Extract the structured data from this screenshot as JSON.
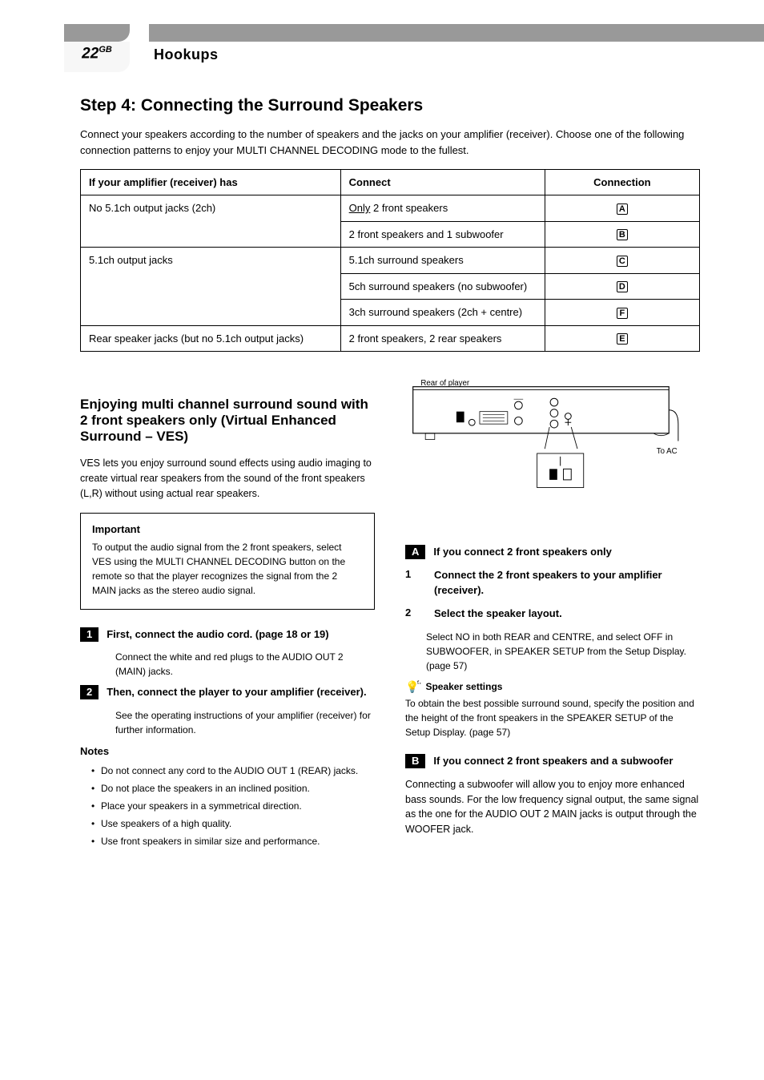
{
  "page_meta": {
    "page_number": "22",
    "page_number_suffix": "GB",
    "section": "Hookups"
  },
  "h2_1": "Step 4: Connecting the Surround Speakers",
  "intro": "Connect your speakers according to the number of speakers and the jacks on your amplifier (receiver). Choose one of the following connection patterns to enjoy your MULTI CHANNEL DECODING mode to the fullest.",
  "table": {
    "headers": [
      "If your amplifier (receiver) has",
      "Connect",
      "Connection"
    ],
    "rows": [
      {
        "a": "No 5.1ch output jacks (2ch)",
        "b": "Only 2 front speakers",
        "c": "A",
        "b_underline": "Only"
      },
      {
        "a": "",
        "b": "2 front speakers and 1 subwoofer",
        "c": "B"
      },
      {
        "a": "5.1ch output jacks",
        "b": "5.1ch surround speakers",
        "c": "C"
      },
      {
        "a": "",
        "b": "5ch surround speakers (no subwoofer)",
        "c": "D"
      },
      {
        "a": "",
        "b": "3ch surround speakers (2ch + centre)",
        "c": "F"
      },
      {
        "a": "Rear speaker jacks (but no 5.1ch output jacks)",
        "b": "2 front speakers, 2 rear speakers",
        "c": "E"
      }
    ]
  },
  "h2_2": "Enjoying multi channel surround sound with 2 front speakers only (Virtual Enhanced Surround – VES)",
  "ves_intro": "VES lets you enjoy surround sound effects using audio imaging to create virtual rear speakers from the sound of the front speakers (L,R) without using actual rear speakers.",
  "important": {
    "title": "Important",
    "text": "To output the audio signal from the 2 front speakers, select VES using the MULTI CHANNEL DECODING button on the remote so that the player recognizes the signal from the 2 MAIN jacks as the stereo audio signal."
  },
  "left": {
    "step1_num": "1",
    "step1_text": "First, connect the audio cord. (page 18 or 19)",
    "step1_note": "Connect the white and red plugs to the AUDIO OUT 2 (MAIN) jacks.",
    "step2_num": "2",
    "step2_text": "Then, connect the player to your amplifier (receiver).",
    "step2_note": "See the operating instructions of your amplifier (receiver) for further information.",
    "notes_title": "Notes",
    "notes": [
      "Do not connect any cord to the AUDIO OUT 1 (REAR) jacks.",
      "Do not place the speakers in an inclined position.",
      "Place your speakers in a symmetrical direction.",
      "Use speakers of a high quality.",
      "Use front speakers in similar size and performance."
    ]
  },
  "right": {
    "diagram": {
      "rear_label": "Rear of player",
      "ac_label": "To AC"
    },
    "case_a": {
      "label": "A",
      "title": "If you connect 2 front speakers only",
      "step1_num": "1",
      "step1_text": "Connect the 2 front speakers to your amplifier (receiver).",
      "step2_num": "2",
      "step2_text": "Select the speaker layout.",
      "step2_note": "Select NO in both REAR and CENTRE, and select OFF in SUBWOOFER, in SPEAKER SETUP from the Setup Display.  (page 57)"
    },
    "hint": {
      "title": "Speaker settings",
      "body": "To obtain the best possible surround sound, specify the position and the height of the front speakers in the SPEAKER SETUP of the Setup Display.  (page 57)"
    },
    "case_b": {
      "label": "B",
      "title": "If you connect 2 front speakers and a subwoofer",
      "body": "Connecting a subwoofer will allow you to enjoy more enhanced bass sounds. For the low frequency signal output, the same signal as the one for the AUDIO OUT 2 MAIN jacks is output through the WOOFER jack."
    }
  },
  "colors": {
    "grey_bar": "#999999",
    "page_bg": "#ffffff",
    "pill_bg": "#f7f7f7",
    "text": "#000000"
  }
}
